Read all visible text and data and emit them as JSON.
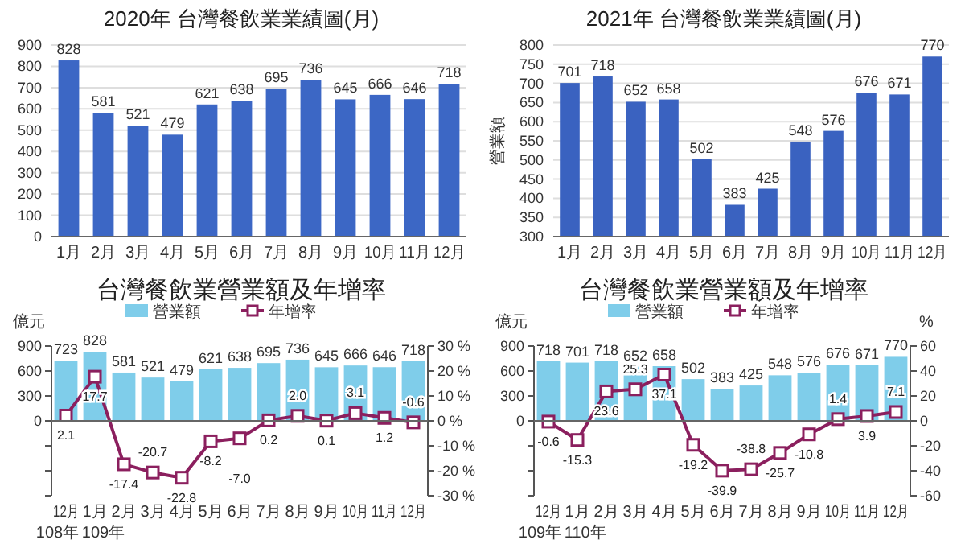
{
  "chart_data": [
    {
      "type": "bar",
      "title": "2020年 台灣餐飲業業績圖(月)",
      "categories": [
        "1月",
        "2月",
        "3月",
        "4月",
        "5月",
        "6月",
        "7月",
        "8月",
        "9月",
        "10月",
        "11月",
        "12月"
      ],
      "series": [
        {
          "color": "#3c67c5",
          "values": [
            828,
            581,
            521,
            479,
            621,
            638,
            695,
            736,
            645,
            666,
            646,
            718
          ]
        }
      ],
      "ylim": [
        0,
        900
      ],
      "yticks": [
        0,
        100,
        200,
        300,
        400,
        500,
        600,
        700,
        800,
        900
      ],
      "grid": "y",
      "data_labels": true
    },
    {
      "type": "bar",
      "title": "2021年 台灣餐飲業業績圖(月)",
      "ylabel": "營業額",
      "categories": [
        "1月",
        "2月",
        "3月",
        "4月",
        "5月",
        "6月",
        "7月",
        "8月",
        "9月",
        "10月",
        "11月",
        "12月"
      ],
      "series": [
        {
          "color": "#3a62c0",
          "values": [
            701,
            718,
            652,
            658,
            502,
            383,
            425,
            548,
            576,
            676,
            671,
            770
          ]
        }
      ],
      "ylim": [
        300,
        800
      ],
      "yticks": [
        300,
        350,
        400,
        450,
        500,
        550,
        600,
        650,
        700,
        750,
        800
      ],
      "grid": "y",
      "data_labels": true
    },
    {
      "type": "bar",
      "title": "台灣餐飲業營業額及年增率",
      "ylabel": "億元",
      "legend": "top",
      "marker": "square",
      "line_style": "solid",
      "categories": [
        "12月\n108年",
        "1月\n109年",
        "2月",
        "3月",
        "4月",
        "5月",
        "6月",
        "7月",
        "8月",
        "9月",
        "10月",
        "11月",
        "12月"
      ],
      "series": [
        {
          "name": "營業額",
          "type": "bar",
          "color": "#7fcdea",
          "values": [
            723,
            828,
            581,
            521,
            479,
            621,
            638,
            695,
            736,
            645,
            666,
            646,
            718
          ],
          "value_labels": [
            "723",
            "828",
            "581",
            "521",
            "479",
            "621",
            "638",
            "695",
            "736",
            "645",
            "666",
            "646",
            "718"
          ]
        },
        {
          "name": "年增率",
          "type": "line",
          "axis": "y2",
          "color": "#8b1f5e",
          "values": [
            2.1,
            17.7,
            -17.4,
            -20.7,
            -22.8,
            -8.2,
            -7.0,
            0.2,
            2.0,
            0.1,
            3.1,
            1.2,
            -0.6
          ],
          "value_labels": [
            "2.1",
            "17.7",
            "-17.4",
            "-20.7",
            "-22.8",
            "-8.2",
            "-7.0",
            "0.2",
            "2.0",
            "0.1",
            "3.1",
            "1.2",
            "-0.6"
          ]
        }
      ],
      "ylim": [
        -900,
        900
      ],
      "yticks": [
        {
          "value": -900,
          "label": null
        },
        {
          "value": -600,
          "label": null
        },
        {
          "value": -300,
          "label": null
        },
        0,
        300,
        600,
        900
      ],
      "y2lim": [
        -30,
        30
      ],
      "y2ticks": [
        {
          "value": -30,
          "label": "-30 %"
        },
        {
          "value": -20,
          "label": "-20 %"
        },
        {
          "value": -10,
          "label": "-10 %"
        },
        {
          "value": 0,
          "label": "0 %"
        },
        {
          "value": 10,
          "label": "10 %"
        },
        {
          "value": 20,
          "label": "20 %"
        },
        {
          "value": 30,
          "label": "30 %"
        }
      ]
    },
    {
      "type": "bar",
      "title": "台灣餐飲業營業額及年增率",
      "ylabel": "億元",
      "y2label": "%",
      "legend": "top",
      "marker": "square",
      "line_style": "solid",
      "categories": [
        "12月\n109年",
        "1月\n110年",
        "2月",
        "3月",
        "4月",
        "5月",
        "6月",
        "7月",
        "8月",
        "9月",
        "10月",
        "11月",
        "12月"
      ],
      "series": [
        {
          "name": "營業額",
          "type": "bar",
          "color": "#7fcdea",
          "values": [
            718,
            701,
            718,
            652,
            658,
            502,
            383,
            425,
            548,
            576,
            676,
            671,
            770
          ],
          "value_labels": [
            "718",
            "701",
            "718",
            "652",
            "658",
            "502",
            "383",
            "425",
            "548",
            "576",
            "676",
            "671",
            "770"
          ]
        },
        {
          "name": "年增率",
          "type": "line",
          "axis": "y2",
          "color": "#8b1f5e",
          "values": [
            -0.6,
            -15.3,
            23.6,
            25.3,
            37.1,
            -19.2,
            -39.9,
            -38.8,
            -25.7,
            -10.8,
            1.4,
            3.9,
            7.1
          ],
          "value_labels": [
            "-0.6",
            "-15.3",
            "23.6",
            "25.3",
            "37.1",
            "-19.2",
            "-39.9",
            "-38.8",
            "-25.7",
            "-10.8",
            "1.4",
            "3.9",
            "7.1"
          ]
        }
      ],
      "ylim": [
        -900,
        900
      ],
      "yticks": [
        {
          "value": -900,
          "label": null
        },
        {
          "value": -600,
          "label": null
        },
        {
          "value": -300,
          "label": null
        },
        0,
        300,
        600,
        900
      ],
      "y2lim": [
        -60,
        60
      ],
      "y2ticks": [
        -60,
        -40,
        -20,
        0,
        20,
        40,
        60
      ]
    }
  ]
}
